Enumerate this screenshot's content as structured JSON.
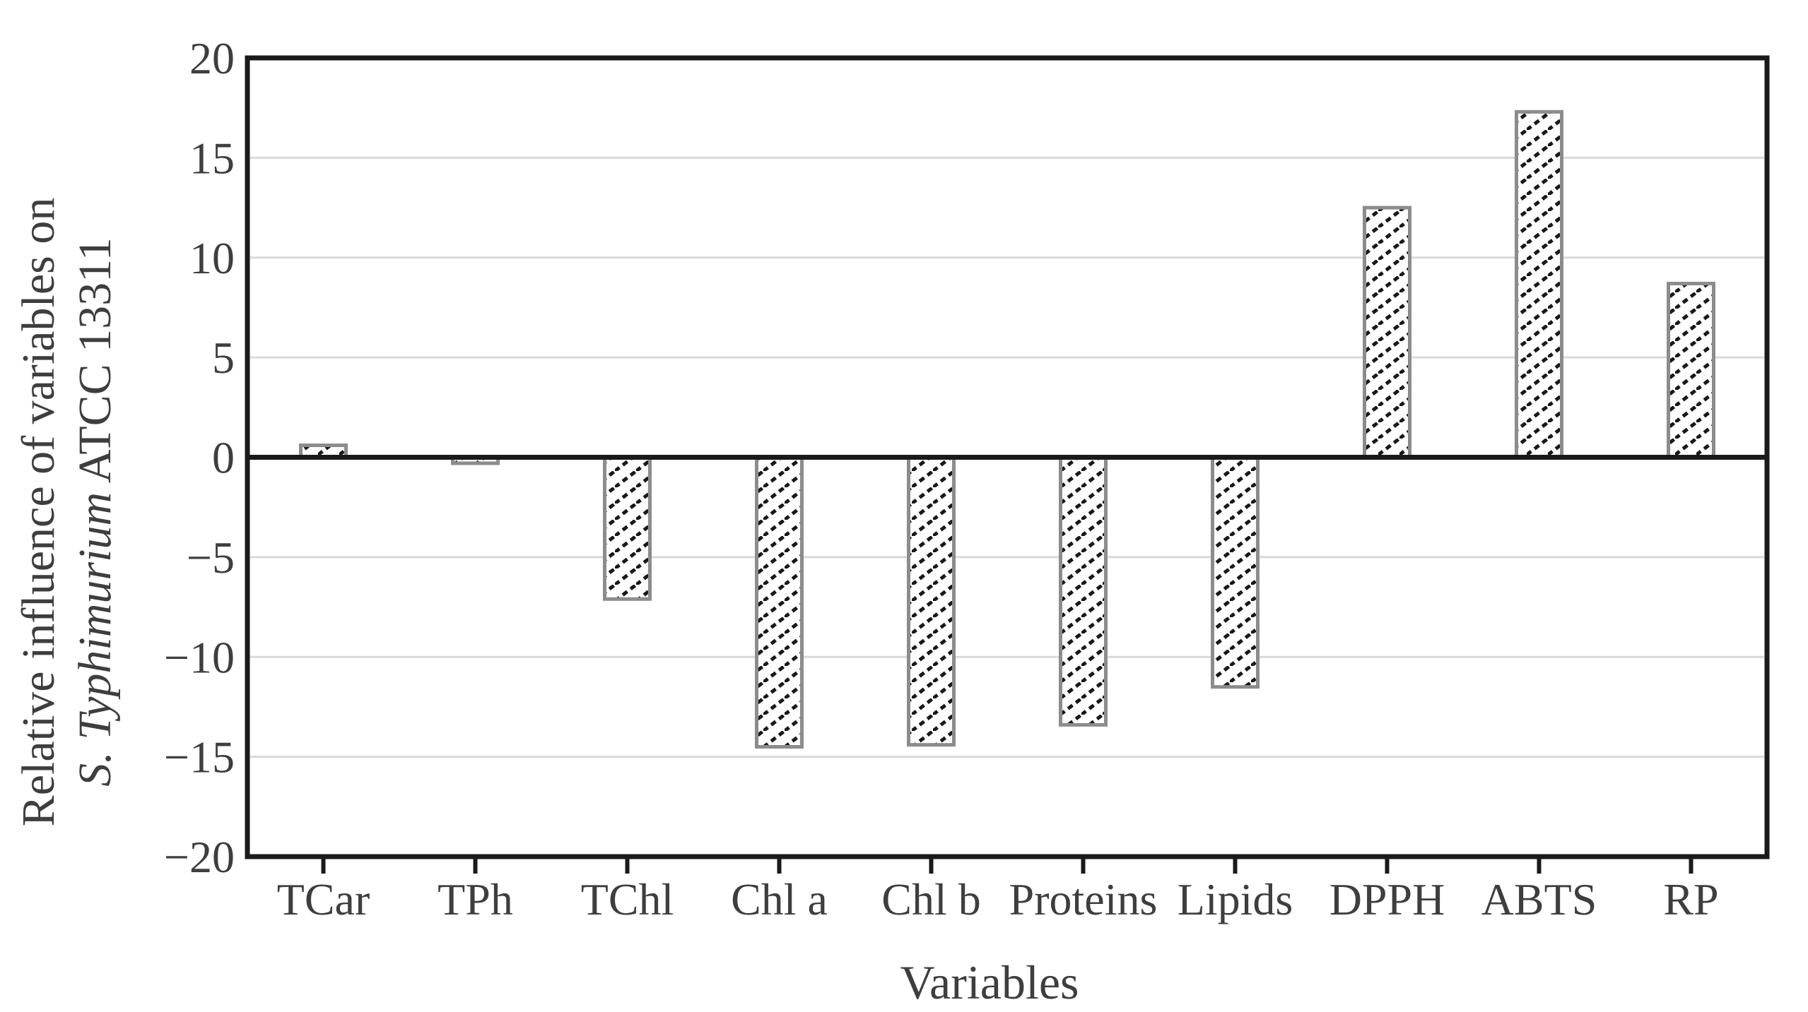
{
  "chart_data": {
    "type": "bar",
    "title": "",
    "xlabel": "Variables",
    "ylabel_line1": "Relative influence of variables on",
    "ylabel_line2_italic": "S. Typhimurium",
    "ylabel_line2_rest": " ATCC 13311",
    "categories": [
      "TCar",
      "TPh",
      "TChl",
      "Chl a",
      "Chl b",
      "Proteins",
      "Lipids",
      "DPPH",
      "ABTS",
      "RP"
    ],
    "values": [
      0.6,
      -0.3,
      -7.1,
      -14.5,
      -14.4,
      -13.4,
      -11.5,
      12.5,
      17.3,
      8.7
    ],
    "ylim": [
      -20,
      20
    ],
    "yticks": [
      20,
      15,
      10,
      5,
      0,
      -5,
      -10,
      -15,
      -20
    ],
    "grid": "horizontal",
    "legend": "none",
    "bar_style": {
      "fill": "diagonal-hatch",
      "hatch_color": "#181818",
      "border_color": "#8c8c8c",
      "background": "#ffffff"
    },
    "colors": {
      "axis": "#1a1a1a",
      "gridline": "#d9d9d9",
      "text": "#3e3e3e"
    }
  }
}
